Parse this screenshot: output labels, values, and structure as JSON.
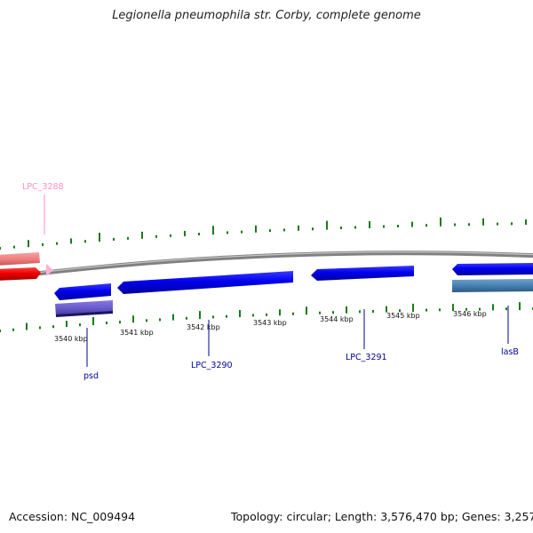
{
  "title": "Legionella pneumophila str. Corby, complete genome",
  "footer": {
    "accession": "Accession: NC_009494",
    "summary": "Topology: circular; Length: 3,576,470 bp; Genes: 3,257"
  },
  "scale": {
    "ticks": [
      "3540 kbp",
      "3541 kbp",
      "3542 kbp",
      "3543 kbp",
      "3544 kbp",
      "3545 kbp",
      "3546 kbp"
    ]
  },
  "genes": [
    {
      "label": "LPC_3288",
      "strand": "+",
      "color": "#f08080"
    },
    {
      "label": "psd",
      "strand": "-",
      "color": "#0000ee"
    },
    {
      "label": "LPC_3290",
      "strand": "-",
      "color": "#0000ee"
    },
    {
      "label": "LPC_3291",
      "strand": "-",
      "color": "#0000ee"
    },
    {
      "label": "lasB",
      "strand": "-",
      "color": "#0000ee"
    }
  ],
  "colors": {
    "forward_cds": "#ee0000",
    "forward_gene": "#f08080",
    "reverse_cds": "#0000ee",
    "reverse_gene_psd": "#6a5acd",
    "reverse_gene_lasB": "#4682b4",
    "gc_skew": "#1a7a1a",
    "backbone": "#808080",
    "label_forward": "#ff8ec6",
    "label_reverse": "#000099"
  }
}
